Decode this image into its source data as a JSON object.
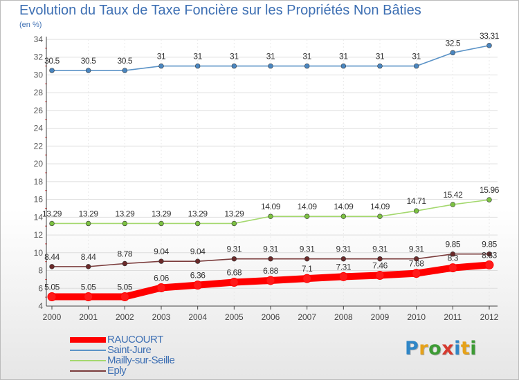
{
  "title": "Evolution du Taux de Taxe Foncière sur les Propriétés Non Bâties",
  "subtitle": "(en %)",
  "logo": {
    "letters": [
      "P",
      "r",
      "o",
      "x",
      "i",
      "t",
      "i"
    ],
    "colors": [
      "#2f86c7",
      "#e6a21a",
      "#3d9b35",
      "#d63a2f",
      "#2f86c7",
      "#e6a21a",
      "#3d9b35"
    ]
  },
  "chart_data": {
    "type": "line",
    "title": "Evolution du Taux de Taxe Foncière sur les Propriétés Non Bâties",
    "ylabel": "(en %)",
    "x": [
      "2000",
      "2001",
      "2002",
      "2003",
      "2004",
      "2005",
      "2006",
      "2007",
      "2008",
      "2009",
      "2010",
      "2011",
      "2012"
    ],
    "ylim": [
      4,
      34
    ],
    "yticks": [
      "4",
      "6",
      "8",
      "10",
      "12",
      "14",
      "16",
      "18",
      "20",
      "22",
      "24",
      "26",
      "28",
      "30",
      "32",
      "34"
    ],
    "grid": "horizontal",
    "legend_position": "bottom-left",
    "series": [
      {
        "name": "Saint-Jure",
        "color": "#5b93c7",
        "marker": "#4a86c0",
        "emphasis": false,
        "values": [
          30.5,
          30.5,
          30.5,
          31,
          31,
          31,
          31,
          31,
          31,
          31,
          31,
          32.5,
          33.31
        ],
        "labels": [
          "30.5",
          "30.5",
          "30.5",
          "31",
          "31",
          "31",
          "31",
          "31",
          "31",
          "31",
          "31",
          "32.5",
          "33.31"
        ]
      },
      {
        "name": "Mailly-sur-Seille",
        "color": "#a4d86e",
        "marker": "#7cc242",
        "emphasis": false,
        "values": [
          13.29,
          13.29,
          13.29,
          13.29,
          13.29,
          13.29,
          14.09,
          14.09,
          14.09,
          14.09,
          14.71,
          15.42,
          15.96
        ],
        "labels": [
          "13.29",
          "13.29",
          "13.29",
          "13.29",
          "13.29",
          "13.29",
          "14.09",
          "14.09",
          "14.09",
          "14.09",
          "14.71",
          "15.42",
          "15.96"
        ]
      },
      {
        "name": "Eply",
        "color": "#7a3b3b",
        "marker": "#6b2a2a",
        "emphasis": false,
        "values": [
          8.44,
          8.44,
          8.78,
          9.04,
          9.04,
          9.31,
          9.31,
          9.31,
          9.31,
          9.31,
          9.31,
          9.85,
          9.85
        ],
        "labels": [
          "8.44",
          "8.44",
          "8.78",
          "9.04",
          "9.04",
          "9.31",
          "9.31",
          "9.31",
          "9.31",
          "9.31",
          "9.31",
          "9.85",
          "9.85"
        ]
      },
      {
        "name": "RAUCOURT",
        "color": "#ff0000",
        "marker": "#ff1a1a",
        "emphasis": true,
        "values": [
          5.05,
          5.05,
          5.05,
          6.06,
          6.36,
          6.68,
          6.88,
          7.1,
          7.31,
          7.46,
          7.68,
          8.3,
          8.63
        ],
        "labels": [
          "5.05",
          "5.05",
          "5.05",
          "6.06",
          "6.36",
          "6.68",
          "6.88",
          "7.1",
          "7.31",
          "7.46",
          "7.68",
          "8.3",
          "8.63"
        ]
      }
    ],
    "legend": [
      {
        "name": "RAUCOURT",
        "color": "#ff0000",
        "emphasis": true
      },
      {
        "name": "Saint-Jure",
        "color": "#5b93c7",
        "emphasis": false
      },
      {
        "name": "Mailly-sur-Seille",
        "color": "#a4d86e",
        "emphasis": false
      },
      {
        "name": "Eply",
        "color": "#7a3b3b",
        "emphasis": false
      }
    ]
  }
}
